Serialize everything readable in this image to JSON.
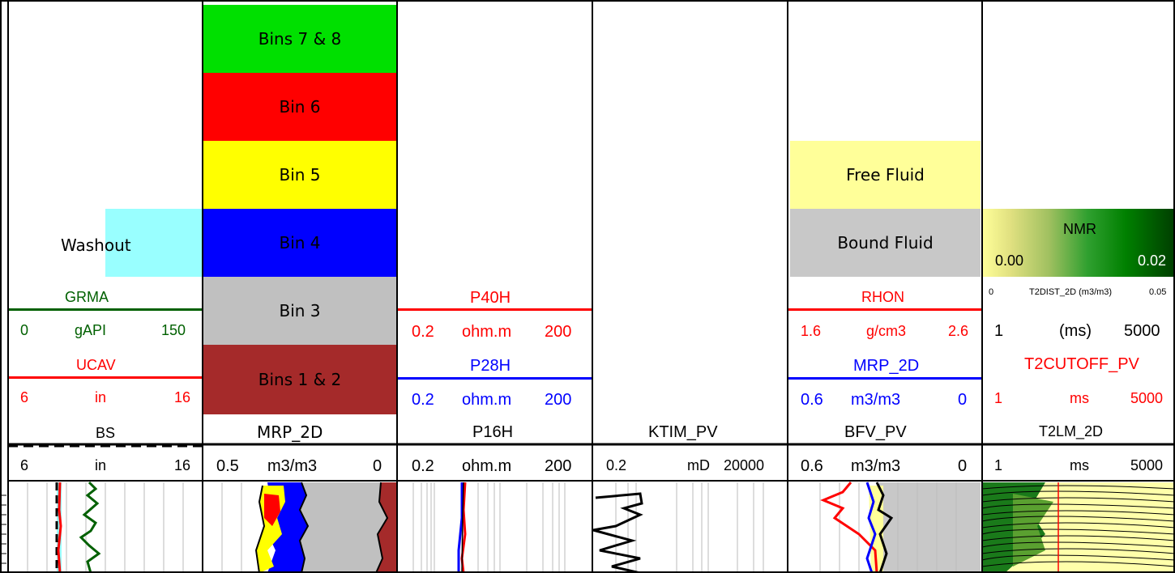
{
  "colors": {
    "green_dark": "#006000",
    "red": "#ff0000",
    "blue": "#0000ff",
    "bins78": "#00e000",
    "bin6": "#ff0000",
    "bin5": "#ffff00",
    "bin4": "#0000ff",
    "bin3": "#c0c0c0",
    "bins12": "#a52a2a",
    "washout": "#99ffff",
    "free_fluid": "#ffff99",
    "bound_fluid": "#c8c8c8"
  },
  "track1": {
    "washout": "Washout",
    "grma": {
      "name": "GRMA",
      "min": "0",
      "unit": "gAPI",
      "max": "150"
    },
    "ucav": {
      "name": "UCAV",
      "min": "6",
      "unit": "in",
      "max": "16"
    },
    "bs": {
      "name": "BS",
      "min": "6",
      "unit": "in",
      "max": "16"
    }
  },
  "track2": {
    "bins": [
      "Bins 7 & 8",
      "Bin 6",
      "Bin 5",
      "Bin 4",
      "Bin 3",
      "Bins 1 & 2"
    ],
    "mrp": {
      "name": "MRP_2D",
      "min": "0.5",
      "unit": "m3/m3",
      "max": "0"
    }
  },
  "track3": {
    "p40h": {
      "name": "P40H",
      "min": "0.2",
      "unit": "ohm.m",
      "max": "200"
    },
    "p28h": {
      "name": "P28H",
      "min": "0.2",
      "unit": "ohm.m",
      "max": "200"
    },
    "p16h": {
      "name": "P16H",
      "min": "0.2",
      "unit": "ohm.m",
      "max": "200"
    }
  },
  "track4": {
    "ktim": {
      "name": "KTIM_PV",
      "min": "0.2",
      "unit": "mD",
      "max": "20000"
    }
  },
  "track5": {
    "free_fluid": "Free Fluid",
    "bound_fluid": "Bound Fluid",
    "rhon": {
      "name": "RHON",
      "min": "1.6",
      "unit": "g/cm3",
      "max": "2.6"
    },
    "mrp": {
      "name": "MRP_2D",
      "min": "0.6",
      "unit": "m3/m3",
      "max": "0"
    },
    "bfv": {
      "name": "BFV_PV",
      "min": "0.6",
      "unit": "m3/m3",
      "max": "0"
    }
  },
  "track6": {
    "nmr": {
      "name": "NMR",
      "min": "0.00",
      "max": "0.02"
    },
    "t2dist": {
      "min": "0",
      "name": "T2DIST_2D (m3/m3)",
      "max": "0.05"
    },
    "t2scale": {
      "min": "1",
      "unit": "(ms)",
      "max": "5000"
    },
    "t2cutoff": {
      "name": "T2CUTOFF_PV",
      "min": "1",
      "unit": "ms",
      "max": "5000"
    },
    "t2lm": {
      "name": "T2LM_2D",
      "min": "1",
      "unit": "ms",
      "max": "5000"
    }
  }
}
